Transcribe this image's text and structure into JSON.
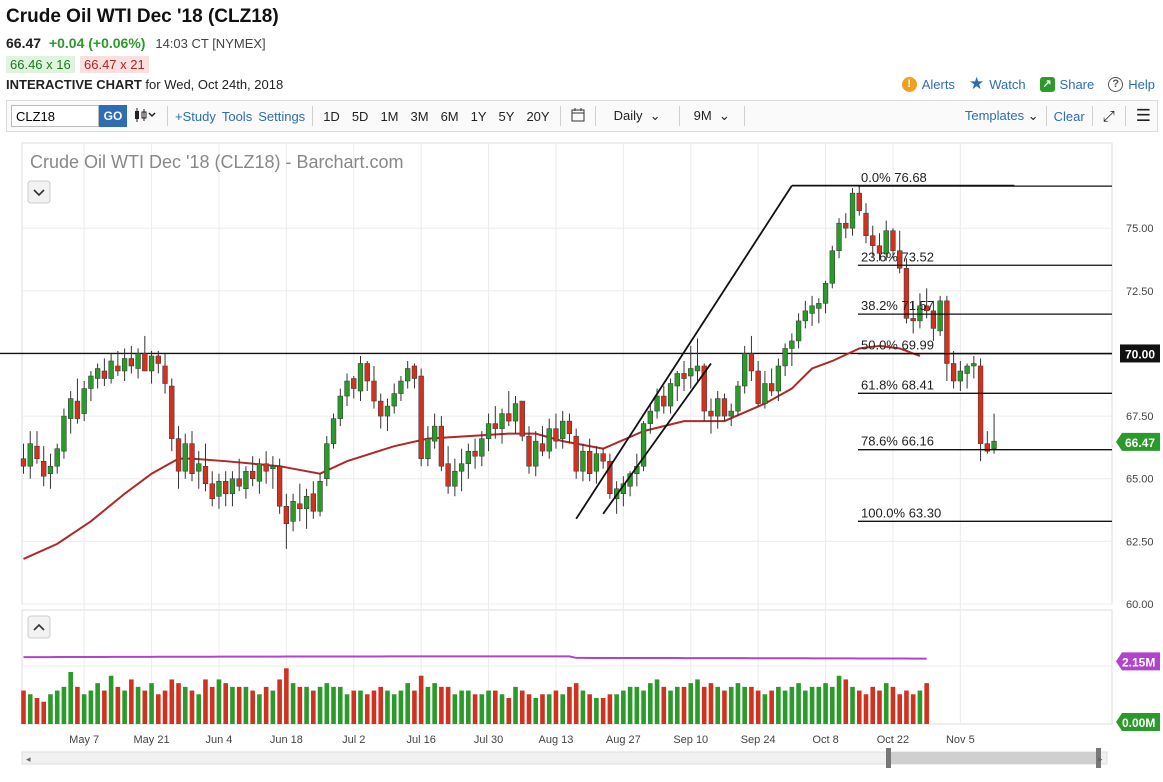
{
  "header": {
    "title": "Crude Oil WTI Dec '18 (CLZ18)",
    "last": "66.47",
    "change": "+0.04 (+0.06%)",
    "time": "14:03 CT [NYMEX]",
    "bid": "66.46 x 16",
    "ask": "66.47 x 21",
    "chart_label": "INTERACTIVE CHART",
    "chart_date": "for Wed, Oct 24th, 2018"
  },
  "links": {
    "alerts": "Alerts",
    "watch": "Watch",
    "share": "Share",
    "help": "Help"
  },
  "toolbar": {
    "symbol": "CLZ18",
    "go": "GO",
    "study": "+Study",
    "tools": "Tools",
    "settings": "Settings",
    "periods": [
      "1D",
      "5D",
      "1M",
      "3M",
      "6M",
      "1Y",
      "5Y",
      "20Y"
    ],
    "interval": "Daily",
    "range": "9M",
    "templates": "Templates",
    "clear": "Clear"
  },
  "colors": {
    "up": "#2a9a2a",
    "down": "#d0321f",
    "ma": "#b02828",
    "volume_ma": "#b244cc",
    "link": "#2e6db4"
  },
  "chart_data": {
    "type": "candlestick",
    "title": "Crude Oil WTI Dec '18 (CLZ18) - Barchart.com",
    "y_ticks": [
      "75.00",
      "72.50",
      "70.00",
      "67.50",
      "65.00",
      "62.50",
      "60.00"
    ],
    "y_tick_values": [
      75,
      72.5,
      70,
      67.5,
      65,
      62.5,
      60
    ],
    "ylim": [
      60,
      78.4
    ],
    "x_ticks": [
      "May 7",
      "May 21",
      "Jun 4",
      "Jun 18",
      "Jul 2",
      "Jul 16",
      "Jul 30",
      "Aug 13",
      "Aug 27",
      "Sep 10",
      "Sep 24",
      "Oct 8",
      "Oct 22",
      "Nov 5"
    ],
    "x_tick_index": [
      9,
      19,
      29,
      39,
      49,
      59,
      69,
      79,
      89,
      99,
      109,
      119,
      129,
      139
    ],
    "n_slots": 144,
    "horizontal_line": {
      "value": 70.0,
      "label": "70.00"
    },
    "last_price": {
      "value": 66.47,
      "label": "66.47"
    },
    "fibonacci": [
      {
        "label": "0.0% 76.68",
        "value": 76.68
      },
      {
        "label": "23.6% 73.52",
        "value": 73.52
      },
      {
        "label": "38.2% 71.57",
        "value": 71.57
      },
      {
        "label": "50.0% 69.99",
        "value": 69.99
      },
      {
        "label": "61.8% 68.41",
        "value": 68.41
      },
      {
        "label": "78.6% 66.16",
        "value": 66.16
      },
      {
        "label": "100.0% 63.30",
        "value": 63.3
      }
    ],
    "trendlines": [
      {
        "from": [
          82,
          63.4
        ],
        "to": [
          114,
          76.7
        ]
      },
      {
        "from": [
          114,
          76.7
        ],
        "to": [
          147,
          76.7
        ]
      }
    ],
    "candles": [
      [
        65.8,
        66.4,
        65.2,
        65.5
      ],
      [
        65.5,
        66.9,
        65.0,
        66.4
      ],
      [
        66.3,
        66.9,
        65.6,
        65.8
      ],
      [
        65.7,
        66.3,
        64.7,
        65.1
      ],
      [
        65.2,
        66.0,
        64.6,
        65.5
      ],
      [
        65.5,
        66.4,
        65.2,
        66.2
      ],
      [
        66.1,
        67.8,
        65.8,
        67.5
      ],
      [
        67.4,
        68.5,
        66.8,
        68.2
      ],
      [
        68.1,
        69.0,
        67.2,
        67.4
      ],
      [
        67.6,
        68.9,
        67.3,
        68.6
      ],
      [
        68.6,
        69.3,
        68.1,
        69.1
      ],
      [
        69.0,
        69.6,
        68.6,
        69.4
      ],
      [
        69.3,
        69.8,
        68.7,
        69.0
      ],
      [
        69.0,
        70.0,
        68.8,
        69.7
      ],
      [
        69.5,
        70.1,
        69.1,
        69.3
      ],
      [
        69.3,
        70.2,
        68.9,
        69.8
      ],
      [
        69.8,
        70.3,
        69.2,
        69.5
      ],
      [
        69.4,
        70.2,
        69.0,
        70.0
      ],
      [
        70.0,
        70.7,
        69.4,
        69.3
      ],
      [
        69.3,
        70.1,
        68.8,
        69.9
      ],
      [
        69.9,
        70.1,
        69.2,
        69.6
      ],
      [
        69.5,
        70.0,
        68.4,
        68.8
      ],
      [
        68.7,
        69.0,
        66.1,
        66.6
      ],
      [
        66.6,
        67.1,
        64.6,
        65.3
      ],
      [
        65.3,
        66.8,
        65.0,
        66.4
      ],
      [
        66.4,
        66.9,
        64.9,
        65.2
      ],
      [
        65.3,
        66.1,
        64.6,
        65.6
      ],
      [
        65.5,
        66.4,
        64.5,
        64.8
      ],
      [
        64.8,
        65.3,
        63.9,
        64.2
      ],
      [
        64.3,
        65.2,
        63.8,
        64.9
      ],
      [
        64.9,
        65.3,
        63.9,
        64.4
      ],
      [
        64.4,
        65.3,
        63.9,
        65.0
      ],
      [
        65.0,
        65.8,
        64.5,
        64.7
      ],
      [
        64.6,
        65.5,
        64.2,
        65.3
      ],
      [
        65.3,
        65.9,
        64.7,
        65.0
      ],
      [
        64.9,
        65.8,
        64.4,
        65.6
      ],
      [
        65.6,
        66.1,
        64.8,
        65.3
      ],
      [
        65.4,
        65.9,
        64.6,
        65.5
      ],
      [
        65.5,
        65.8,
        63.6,
        63.9
      ],
      [
        63.9,
        64.4,
        62.2,
        63.2
      ],
      [
        63.3,
        64.4,
        62.9,
        64.1
      ],
      [
        64.0,
        64.8,
        63.3,
        63.8
      ],
      [
        63.8,
        64.6,
        63.0,
        64.3
      ],
      [
        64.4,
        64.9,
        63.4,
        63.7
      ],
      [
        63.7,
        65.2,
        63.5,
        64.9
      ],
      [
        65.0,
        66.7,
        64.7,
        66.4
      ],
      [
        66.4,
        67.6,
        66.2,
        67.4
      ],
      [
        67.4,
        68.6,
        67.1,
        68.3
      ],
      [
        68.3,
        69.2,
        67.9,
        68.9
      ],
      [
        69.0,
        69.1,
        68.2,
        68.6
      ],
      [
        68.5,
        69.9,
        68.1,
        69.6
      ],
      [
        69.6,
        69.7,
        68.5,
        68.9
      ],
      [
        68.9,
        69.5,
        67.8,
        68.1
      ],
      [
        68.1,
        68.4,
        67.0,
        67.5
      ],
      [
        67.5,
        68.2,
        66.9,
        67.9
      ],
      [
        67.9,
        68.8,
        67.6,
        68.4
      ],
      [
        68.4,
        69.1,
        68.1,
        68.9
      ],
      [
        68.9,
        69.7,
        68.6,
        69.4
      ],
      [
        69.5,
        69.6,
        68.6,
        69.0
      ],
      [
        69.1,
        69.4,
        65.5,
        65.8
      ],
      [
        65.8,
        67.1,
        65.5,
        66.6
      ],
      [
        66.5,
        67.6,
        66.2,
        67.1
      ],
      [
        67.1,
        67.5,
        65.3,
        65.5
      ],
      [
        65.6,
        66.3,
        64.4,
        64.7
      ],
      [
        64.7,
        65.8,
        64.3,
        65.3
      ],
      [
        65.3,
        66.2,
        64.5,
        65.6
      ],
      [
        65.6,
        66.4,
        65.0,
        66.1
      ],
      [
        66.1,
        66.6,
        65.4,
        65.9
      ],
      [
        65.9,
        66.9,
        65.5,
        66.6
      ],
      [
        66.6,
        67.6,
        66.1,
        67.2
      ],
      [
        67.2,
        67.9,
        66.6,
        67.0
      ],
      [
        67.0,
        67.8,
        66.4,
        67.6
      ],
      [
        67.6,
        68.5,
        67.1,
        67.3
      ],
      [
        67.3,
        68.3,
        66.8,
        68.0
      ],
      [
        68.1,
        68.1,
        66.5,
        66.7
      ],
      [
        66.7,
        67.1,
        65.2,
        65.5
      ],
      [
        65.5,
        66.9,
        65.1,
        66.5
      ],
      [
        66.4,
        67.1,
        65.9,
        66.1
      ],
      [
        66.1,
        67.4,
        65.8,
        67.0
      ],
      [
        67.0,
        67.6,
        66.2,
        66.5
      ],
      [
        66.6,
        67.7,
        66.2,
        67.3
      ],
      [
        67.3,
        67.6,
        66.4,
        66.8
      ],
      [
        66.7,
        67.0,
        65.0,
        65.3
      ],
      [
        65.3,
        66.4,
        64.9,
        66.1
      ],
      [
        66.1,
        66.6,
        64.9,
        65.2
      ],
      [
        65.3,
        66.3,
        64.8,
        66.0
      ],
      [
        66.0,
        66.2,
        65.4,
        65.7
      ],
      [
        65.7,
        66.0,
        64.2,
        64.4
      ],
      [
        64.2,
        64.9,
        63.6,
        64.6
      ],
      [
        64.4,
        65.1,
        63.9,
        64.8
      ],
      [
        64.7,
        65.3,
        64.3,
        65.2
      ],
      [
        65.2,
        66.0,
        64.7,
        65.5
      ],
      [
        65.5,
        67.3,
        65.3,
        67.2
      ],
      [
        67.2,
        68.0,
        66.8,
        67.7
      ],
      [
        67.7,
        68.6,
        67.4,
        68.3
      ],
      [
        68.3,
        68.7,
        67.6,
        67.9
      ],
      [
        67.9,
        69.0,
        67.6,
        68.8
      ],
      [
        68.7,
        69.3,
        68.1,
        69.2
      ],
      [
        69.2,
        69.7,
        68.5,
        69.0
      ],
      [
        69.1,
        70.3,
        68.6,
        69.4
      ],
      [
        69.3,
        70.6,
        68.9,
        69.5
      ],
      [
        69.5,
        69.6,
        67.3,
        67.7
      ],
      [
        67.7,
        68.2,
        66.8,
        67.5
      ],
      [
        67.5,
        68.5,
        67.0,
        68.2
      ],
      [
        68.2,
        68.4,
        67.3,
        67.5
      ],
      [
        67.5,
        68.0,
        67.1,
        67.7
      ],
      [
        67.7,
        68.9,
        67.5,
        68.7
      ],
      [
        68.7,
        70.3,
        68.4,
        70.0
      ],
      [
        70.0,
        70.7,
        68.9,
        69.3
      ],
      [
        69.3,
        69.7,
        67.9,
        68.0
      ],
      [
        68.0,
        69.3,
        67.8,
        68.8
      ],
      [
        68.8,
        69.4,
        68.3,
        68.5
      ],
      [
        68.5,
        69.8,
        68.1,
        69.5
      ],
      [
        69.5,
        70.4,
        69.1,
        70.2
      ],
      [
        70.2,
        70.8,
        69.5,
        70.5
      ],
      [
        70.5,
        71.6,
        70.2,
        71.3
      ],
      [
        71.3,
        72.1,
        71.0,
        71.7
      ],
      [
        71.6,
        72.3,
        71.1,
        71.9
      ],
      [
        71.8,
        72.2,
        71.2,
        72.0
      ],
      [
        72.0,
        72.9,
        71.6,
        72.8
      ],
      [
        72.8,
        74.3,
        72.6,
        74.1
      ],
      [
        74.1,
        75.4,
        73.8,
        75.2
      ],
      [
        75.2,
        75.6,
        74.6,
        75.0
      ],
      [
        75.0,
        76.6,
        74.7,
        76.4
      ],
      [
        76.4,
        76.7,
        75.5,
        75.7
      ],
      [
        75.6,
        76.0,
        74.4,
        74.7
      ],
      [
        74.7,
        75.1,
        73.9,
        74.3
      ],
      [
        74.3,
        74.8,
        73.7,
        74.0
      ],
      [
        74.0,
        75.3,
        73.7,
        74.9
      ],
      [
        74.9,
        75.0,
        73.8,
        74.1
      ],
      [
        74.1,
        74.9,
        73.2,
        73.4
      ],
      [
        73.4,
        73.8,
        71.2,
        71.4
      ],
      [
        71.4,
        72.1,
        70.8,
        71.3
      ],
      [
        71.3,
        72.4,
        71.0,
        71.9
      ],
      [
        71.9,
        72.6,
        71.4,
        71.7
      ],
      [
        71.7,
        72.1,
        70.5,
        71.0
      ],
      [
        70.9,
        72.3,
        70.7,
        72.1
      ],
      [
        72.1,
        72.3,
        68.9,
        69.6
      ],
      [
        69.6,
        70.1,
        68.6,
        68.9
      ],
      [
        68.9,
        69.7,
        68.5,
        69.3
      ],
      [
        69.2,
        69.6,
        68.6,
        69.5
      ],
      [
        69.5,
        69.9,
        69.0,
        69.6
      ],
      [
        69.5,
        69.8,
        65.7,
        66.4
      ],
      [
        66.4,
        66.9,
        66.0,
        66.1
      ],
      [
        66.2,
        67.6,
        66.0,
        66.5
      ]
    ],
    "ma_points": [
      [
        0,
        61.8
      ],
      [
        5,
        62.4
      ],
      [
        10,
        63.3
      ],
      [
        15,
        64.4
      ],
      [
        19,
        65.2
      ],
      [
        23,
        65.8
      ],
      [
        25,
        65.8
      ],
      [
        30,
        65.7
      ],
      [
        38,
        65.5
      ],
      [
        44,
        65.2
      ],
      [
        48,
        65.7
      ],
      [
        55,
        66.3
      ],
      [
        60,
        66.6
      ],
      [
        66,
        66.7
      ],
      [
        72,
        66.8
      ],
      [
        76,
        66.8
      ],
      [
        80,
        66.5
      ],
      [
        86,
        66.2
      ],
      [
        92,
        66.9
      ],
      [
        98,
        67.3
      ],
      [
        104,
        67.3
      ],
      [
        110,
        68.0
      ],
      [
        114,
        68.6
      ],
      [
        117,
        69.4
      ],
      [
        120,
        69.7
      ],
      [
        124,
        70.2
      ],
      [
        127,
        70.3
      ],
      [
        130,
        70.2
      ],
      [
        133,
        69.9
      ]
    ],
    "volume": {
      "label_top": "2.15M",
      "label_bottom": "0.00M",
      "max": 2.8,
      "avg_line": [
        1.8,
        1.82
      ],
      "values": [
        0.9,
        0.8,
        0.7,
        0.6,
        0.8,
        0.9,
        1.0,
        1.4,
        1.0,
        0.8,
        0.9,
        1.1,
        0.9,
        1.3,
        1.0,
        0.9,
        1.2,
        1.0,
        0.9,
        1.1,
        0.8,
        0.9,
        1.2,
        1.1,
        1.0,
        0.9,
        0.8,
        1.2,
        1.0,
        1.2,
        1.1,
        1.0,
        1.0,
        1.0,
        0.9,
        0.8,
        1.0,
        0.9,
        1.2,
        1.5,
        1.1,
        1.0,
        1.0,
        0.9,
        1.0,
        1.1,
        1.0,
        1.0,
        0.8,
        0.9,
        0.9,
        0.8,
        0.9,
        1.0,
        0.9,
        0.8,
        0.9,
        1.1,
        0.9,
        1.3,
        1.0,
        1.1,
        1.0,
        1.0,
        0.8,
        0.9,
        0.9,
        0.8,
        0.8,
        0.9,
        0.9,
        0.8,
        0.7,
        1.0,
        0.9,
        0.8,
        0.7,
        0.8,
        0.8,
        0.9,
        0.8,
        1.0,
        1.1,
        0.9,
        0.8,
        0.7,
        0.7,
        0.8,
        0.8,
        0.9,
        1.0,
        1.0,
        0.9,
        1.1,
        1.2,
        1.0,
        0.9,
        1.0,
        1.0,
        1.1,
        1.2,
        1.0,
        1.1,
        1.0,
        0.9,
        1.0,
        1.1,
        1.0,
        1.0,
        0.9,
        0.8,
        0.9,
        1.0,
        0.9,
        1.0,
        1.1,
        0.9,
        1.0,
        1.0,
        1.1,
        1.0,
        1.3,
        1.2,
        1.0,
        0.9,
        0.8,
        1.0,
        0.9,
        1.1,
        1.0,
        0.8,
        0.9,
        0.8,
        0.9,
        1.1
      ]
    }
  }
}
